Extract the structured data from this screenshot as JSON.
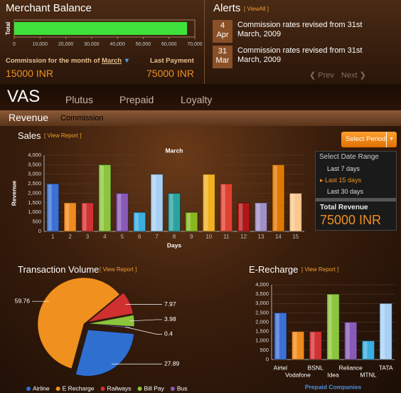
{
  "merchant_balance": {
    "title": "Merchant Balance",
    "axis_label": "Total",
    "value": 67000,
    "color": "#3ee23a",
    "xlim": [
      0,
      70000
    ],
    "xticks": [
      0,
      {
        "value": 10000,
        "label": "10,000"
      },
      {
        "value": 20000,
        "label": "20,000"
      },
      {
        "value": 30000,
        "label": "30,000"
      },
      {
        "value": 40000,
        "label": "40,000"
      },
      {
        "value": 50000,
        "label": "50,000"
      },
      {
        "value": 60000,
        "label": "60,000"
      },
      {
        "value": 70000,
        "label": "70,000"
      }
    ],
    "commission_label": "Commission for the month of",
    "month": "March",
    "commission": "15000 INR",
    "last_payment_label": "Last Payment",
    "last_payment": "75000 INR"
  },
  "alerts": {
    "title": "Alerts",
    "view_all": "[ ViewAll ]",
    "items": [
      {
        "day": "4",
        "month": "Apr",
        "text": "Commission rates revised from 31st March, 2009"
      },
      {
        "day": "31",
        "month": "Mar",
        "text": "Commission rates revised from 31st March, 2009"
      }
    ],
    "prev": "Prev",
    "next": "Next"
  },
  "nav": {
    "title": "VAS",
    "tabs": [
      "Plutus",
      "Prepaid",
      "Loyalty"
    ]
  },
  "subtabs": [
    "Revenue",
    "Commission"
  ],
  "sales": {
    "title": "Sales",
    "view_report": "[ View Report ]",
    "select_period": "Select Period",
    "chart": {
      "type": "bar",
      "title": "March",
      "xlabel": "Days",
      "ylabel": "Revenue",
      "categories": [
        "1",
        "2",
        "3",
        "4",
        "5",
        "6",
        "7",
        "8",
        "9",
        "10",
        "11",
        "12",
        "13",
        "14",
        "15"
      ],
      "values": [
        2500,
        1500,
        1500,
        3500,
        2000,
        1000,
        3000,
        2000,
        1000,
        3000,
        2500,
        1500,
        1500,
        3500,
        2000
      ],
      "colors": [
        "#3b70d6",
        "#f08a1c",
        "#d03232",
        "#8cc43c",
        "#8a5ab8",
        "#3aaee0",
        "#a8d0f4",
        "#2aa3a0",
        "#88b820",
        "#f0b020",
        "#e04030",
        "#b01818",
        "#a090c8",
        "#e07800",
        "#f8c890"
      ],
      "ylim": [
        0,
        4000
      ],
      "yticks": [
        0,
        500,
        {
          "value": 1000,
          "label": "1,000"
        },
        {
          "value": 1500,
          "label": "1,500"
        },
        {
          "value": 2000,
          "label": "2,000"
        },
        {
          "value": 2500,
          "label": "2,500"
        },
        {
          "value": 3000,
          "label": "3,000"
        },
        {
          "value": 3500,
          "label": "3,500"
        },
        {
          "value": 4000,
          "label": "4,000"
        }
      ]
    },
    "date_range": {
      "title": "Select Date Range",
      "options": [
        "Last 7 days",
        "Last 15 days",
        "Last 30 days"
      ],
      "total_label": "Total Revenue",
      "total": "75000 INR"
    }
  },
  "transaction_volume": {
    "title": "Transaction Volume",
    "view_report": "[ View Report ]",
    "chart": {
      "type": "pie",
      "categories": [
        "Airline",
        "E Recharge",
        "Railways",
        "Bill Pay",
        "Bus"
      ],
      "values": [
        27.89,
        59.76,
        7.97,
        3.98,
        0.4
      ],
      "colors": [
        "#2f6fd0",
        "#f0901e",
        "#d03030",
        "#8cc43c",
        "#8a5ab8"
      ]
    }
  },
  "erecharge": {
    "title": "E-Recharge",
    "view_report": "[ View Report ]",
    "chart": {
      "type": "bar",
      "xlabel": "Prepaid Companies",
      "categories": [
        "Airtel",
        "Vodafone",
        "BSNL",
        "Idea",
        "Reliance",
        "MTNL",
        "TATA"
      ],
      "values": [
        2500,
        1500,
        1500,
        3500,
        2000,
        1000,
        3000
      ],
      "colors": [
        "#3b70d6",
        "#f08a1c",
        "#d03232",
        "#8cc43c",
        "#8a5ab8",
        "#3aaee0",
        "#a8d0f4"
      ],
      "ylim": [
        0,
        4000
      ],
      "yticks": [
        0,
        500,
        {
          "value": 1000,
          "label": "1,000"
        },
        {
          "value": 1500,
          "label": "1,500"
        },
        {
          "value": 2000,
          "label": "2,000"
        },
        {
          "value": 2500,
          "label": "2,500"
        },
        {
          "value": 3000,
          "label": "3,000"
        },
        {
          "value": 3500,
          "label": "3,500"
        },
        {
          "value": 4000,
          "label": "4,000"
        }
      ]
    }
  }
}
